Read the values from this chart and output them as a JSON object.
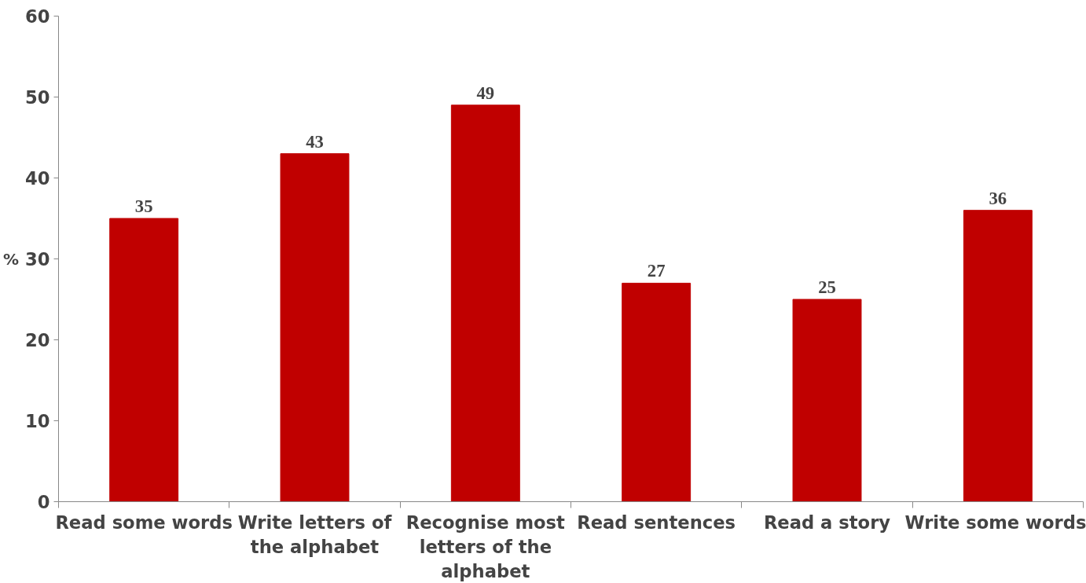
{
  "chart_data": {
    "type": "bar",
    "ylabel": "%",
    "categories": [
      "Read some words",
      "Write letters of the alphabet",
      "Recognise most letters of the alphabet",
      "Read sentences",
      "Read a story",
      "Write some words"
    ],
    "values": [
      35,
      43,
      49,
      27,
      25,
      36
    ],
    "color": "#c00000",
    "ylim": [
      0,
      60
    ],
    "yticks": [
      0,
      10,
      20,
      30,
      40,
      50,
      60
    ],
    "grid": false,
    "data_labels": true
  }
}
